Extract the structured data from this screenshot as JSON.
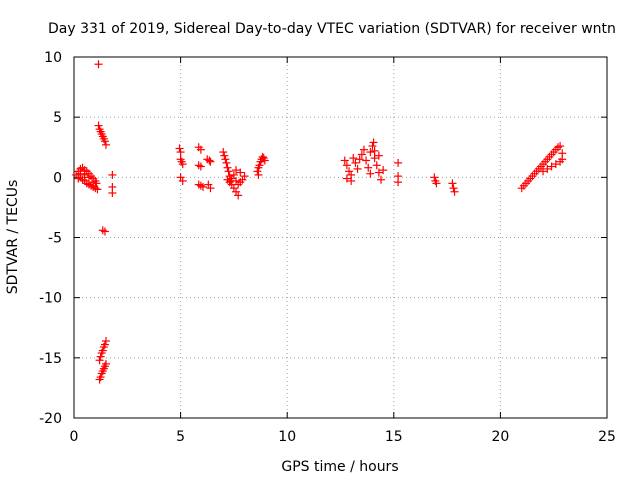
{
  "chart_data": {
    "type": "scatter",
    "title": "Day 331 of 2019, Sidereal Day-to-day VTEC variation (SDTVAR) for receiver wntn",
    "xlabel": "GPS time / hours",
    "ylabel": "SDTVAR / TECUs",
    "xlim": [
      0,
      25
    ],
    "ylim": [
      -20,
      10
    ],
    "xticks": [
      0,
      5,
      10,
      15,
      20,
      25
    ],
    "yticks": [
      -20,
      -15,
      -10,
      -5,
      0,
      5,
      10
    ],
    "xtick_labels": [
      "0",
      "5",
      "10",
      "15",
      "20",
      "25"
    ],
    "ytick_labels": [
      "-20",
      "-15",
      "-10",
      "-5",
      "0",
      "5",
      "10"
    ],
    "grid": true,
    "marker": "plus",
    "color": "#ff0000",
    "series": [
      {
        "name": "SDTVAR",
        "points": [
          [
            0.1,
            0.2
          ],
          [
            0.2,
            0.5
          ],
          [
            0.3,
            0.7
          ],
          [
            0.4,
            0.8
          ],
          [
            0.5,
            0.6
          ],
          [
            0.6,
            0.5
          ],
          [
            0.7,
            0.3
          ],
          [
            0.8,
            0.1
          ],
          [
            0.9,
            -0.1
          ],
          [
            1.0,
            -0.3
          ],
          [
            1.05,
            -0.5
          ],
          [
            0.2,
            -0.1
          ],
          [
            0.3,
            0.0
          ],
          [
            0.4,
            -0.2
          ],
          [
            0.5,
            -0.3
          ],
          [
            0.6,
            -0.5
          ],
          [
            0.7,
            -0.6
          ],
          [
            0.8,
            -0.7
          ],
          [
            0.9,
            -0.8
          ],
          [
            1.0,
            -0.9
          ],
          [
            1.1,
            -1.0
          ],
          [
            0.3,
            0.3
          ],
          [
            0.5,
            0.2
          ],
          [
            0.7,
            0.0
          ],
          [
            0.9,
            -0.4
          ],
          [
            1.15,
            9.4
          ],
          [
            1.15,
            4.3
          ],
          [
            1.2,
            4.0
          ],
          [
            1.25,
            3.8
          ],
          [
            1.3,
            3.6
          ],
          [
            1.35,
            3.4
          ],
          [
            1.4,
            3.2
          ],
          [
            1.45,
            3.0
          ],
          [
            1.5,
            2.7
          ],
          [
            1.35,
            -4.4
          ],
          [
            1.45,
            -4.5
          ],
          [
            1.8,
            0.2
          ],
          [
            1.8,
            -0.8
          ],
          [
            1.8,
            -1.3
          ],
          [
            1.2,
            -15.2
          ],
          [
            1.25,
            -14.9
          ],
          [
            1.3,
            -14.6
          ],
          [
            1.35,
            -14.4
          ],
          [
            1.4,
            -14.1
          ],
          [
            1.45,
            -13.9
          ],
          [
            1.5,
            -13.6
          ],
          [
            1.2,
            -16.8
          ],
          [
            1.25,
            -16.6
          ],
          [
            1.3,
            -16.3
          ],
          [
            1.35,
            -16.1
          ],
          [
            1.4,
            -15.9
          ],
          [
            1.45,
            -15.7
          ],
          [
            1.5,
            -15.5
          ],
          [
            4.95,
            2.4
          ],
          [
            5.0,
            2.1
          ],
          [
            5.0,
            1.5
          ],
          [
            5.05,
            1.3
          ],
          [
            5.1,
            1.1
          ],
          [
            5.0,
            0.0
          ],
          [
            5.1,
            -0.3
          ],
          [
            5.85,
            2.5
          ],
          [
            5.95,
            2.3
          ],
          [
            5.85,
            1.0
          ],
          [
            5.95,
            0.9
          ],
          [
            6.25,
            1.5
          ],
          [
            6.35,
            1.4
          ],
          [
            6.4,
            1.3
          ],
          [
            5.85,
            -0.6
          ],
          [
            5.95,
            -0.7
          ],
          [
            6.05,
            -0.8
          ],
          [
            6.3,
            -0.6
          ],
          [
            6.4,
            -0.9
          ],
          [
            7.0,
            2.1
          ],
          [
            7.05,
            1.8
          ],
          [
            7.1,
            1.5
          ],
          [
            7.15,
            1.2
          ],
          [
            7.2,
            0.8
          ],
          [
            7.25,
            0.5
          ],
          [
            7.3,
            0.1
          ],
          [
            7.35,
            -0.3
          ],
          [
            7.4,
            -0.6
          ],
          [
            7.5,
            -0.9
          ],
          [
            7.6,
            -1.2
          ],
          [
            7.7,
            -1.5
          ],
          [
            7.2,
            -0.2
          ],
          [
            7.3,
            -0.4
          ],
          [
            7.4,
            -0.1
          ],
          [
            7.5,
            0.2
          ],
          [
            7.6,
            -0.3
          ],
          [
            7.7,
            -0.6
          ],
          [
            7.8,
            -0.4
          ],
          [
            7.9,
            -0.2
          ],
          [
            8.0,
            0.1
          ],
          [
            7.8,
            0.4
          ],
          [
            7.6,
            0.6
          ],
          [
            8.6,
            0.5
          ],
          [
            8.65,
            0.8
          ],
          [
            8.7,
            1.0
          ],
          [
            8.75,
            1.3
          ],
          [
            8.8,
            1.5
          ],
          [
            8.85,
            1.7
          ],
          [
            8.9,
            1.6
          ],
          [
            8.95,
            1.4
          ],
          [
            8.65,
            0.2
          ],
          [
            12.7,
            1.4
          ],
          [
            12.8,
            1.0
          ],
          [
            12.9,
            0.5
          ],
          [
            13.0,
            0.2
          ],
          [
            12.8,
            -0.1
          ],
          [
            13.0,
            -0.3
          ],
          [
            13.1,
            1.6
          ],
          [
            13.2,
            1.2
          ],
          [
            13.3,
            0.7
          ],
          [
            13.4,
            1.5
          ],
          [
            13.5,
            1.9
          ],
          [
            13.6,
            2.3
          ],
          [
            13.7,
            1.4
          ],
          [
            13.8,
            0.8
          ],
          [
            13.9,
            0.3
          ],
          [
            13.9,
            2.1
          ],
          [
            14.0,
            2.6
          ],
          [
            14.05,
            2.9
          ],
          [
            14.1,
            1.6
          ],
          [
            14.2,
            1.0
          ],
          [
            14.3,
            0.4
          ],
          [
            14.4,
            -0.2
          ],
          [
            14.5,
            0.6
          ],
          [
            14.1,
            2.2
          ],
          [
            14.3,
            1.8
          ],
          [
            15.2,
            1.2
          ],
          [
            15.2,
            0.1
          ],
          [
            15.2,
            -0.4
          ],
          [
            16.9,
            0.0
          ],
          [
            16.95,
            -0.3
          ],
          [
            17.0,
            -0.5
          ],
          [
            17.75,
            -0.5
          ],
          [
            17.8,
            -0.9
          ],
          [
            17.85,
            -1.2
          ],
          [
            21.0,
            -0.9
          ],
          [
            21.1,
            -0.7
          ],
          [
            21.2,
            -0.5
          ],
          [
            21.3,
            -0.3
          ],
          [
            21.4,
            -0.1
          ],
          [
            21.5,
            0.1
          ],
          [
            21.6,
            0.3
          ],
          [
            21.7,
            0.5
          ],
          [
            21.8,
            0.7
          ],
          [
            21.9,
            0.9
          ],
          [
            22.0,
            1.1
          ],
          [
            22.1,
            1.3
          ],
          [
            22.2,
            1.5
          ],
          [
            22.3,
            1.7
          ],
          [
            22.4,
            1.9
          ],
          [
            22.5,
            2.1
          ],
          [
            22.6,
            2.3
          ],
          [
            22.7,
            2.5
          ],
          [
            22.8,
            2.6
          ],
          [
            22.0,
            0.5
          ],
          [
            22.2,
            0.7
          ],
          [
            22.4,
            0.9
          ],
          [
            22.6,
            1.1
          ],
          [
            22.8,
            1.3
          ],
          [
            22.9,
            1.5
          ],
          [
            22.9,
            2.0
          ]
        ]
      }
    ]
  }
}
